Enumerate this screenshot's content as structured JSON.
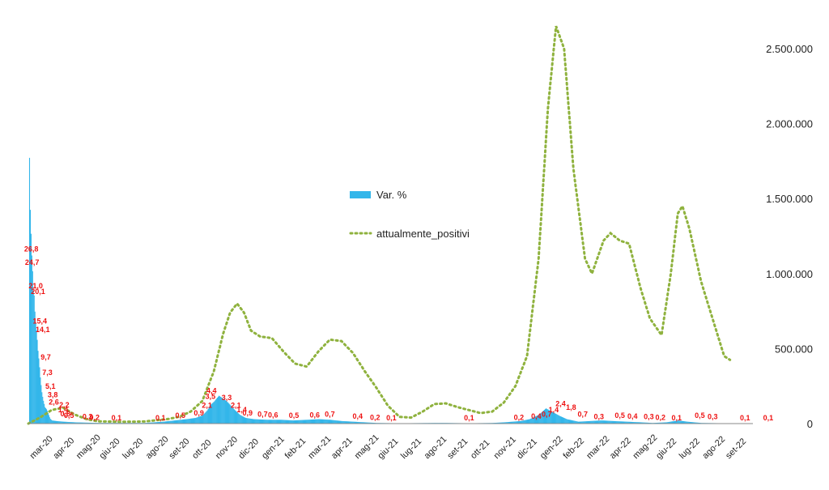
{
  "chart_data": {
    "type": "bar+line",
    "title": "",
    "colors": {
      "bars": "#33b6ea",
      "line": "#8fb23e",
      "labels": "#ee1111",
      "axis": "#888888"
    },
    "x_ticks": [
      "mar-20",
      "apr-20",
      "mag-20",
      "giu-20",
      "lug-20",
      "ago-20",
      "set-20",
      "ott-20",
      "nov-20",
      "dic-20",
      "gen-21",
      "feb-21",
      "mar-21",
      "apr-21",
      "mag-21",
      "giu-21",
      "lug-21",
      "ago-21",
      "set-21",
      "ott-21",
      "nov-21",
      "dic-21",
      "gen-22",
      "feb-22",
      "mar-22",
      "apr-22",
      "mag-22",
      "giu-22",
      "lug-22",
      "ago-22",
      "set-22"
    ],
    "y_right": {
      "min": 0,
      "max": 2700000,
      "ticks": [
        0,
        500000,
        1000000,
        1500000,
        2000000,
        2500000
      ],
      "tick_labels": [
        "0",
        "500.000",
        "1.000.000",
        "1.500.000",
        "2.000.000",
        "2.500.000"
      ]
    },
    "var_scale_max": 64,
    "series": [
      {
        "name": "Var. %",
        "kind": "bar",
        "points": [
          [
            0,
            0
          ],
          [
            0.02,
            46
          ],
          [
            0.04,
            40
          ],
          [
            0.07,
            33
          ],
          [
            0.1,
            30
          ],
          [
            0.13,
            26.8
          ],
          [
            0.16,
            24.7
          ],
          [
            0.2,
            21
          ],
          [
            0.24,
            20.1
          ],
          [
            0.28,
            16.5
          ],
          [
            0.32,
            15.4
          ],
          [
            0.35,
            14.1
          ],
          [
            0.4,
            11.5
          ],
          [
            0.45,
            9.7
          ],
          [
            0.5,
            7.3
          ],
          [
            0.56,
            5.1
          ],
          [
            0.62,
            3.8
          ],
          [
            0.7,
            2.6
          ],
          [
            0.78,
            2.2
          ],
          [
            0.86,
            1.4
          ],
          [
            0.92,
            0.8
          ],
          [
            1.0,
            0.5
          ],
          [
            1.2,
            0.4
          ],
          [
            1.5,
            0.3
          ],
          [
            2.0,
            0.2
          ],
          [
            3.0,
            0.1
          ],
          [
            5.0,
            0.1
          ],
          [
            5.8,
            0.3
          ],
          [
            6.3,
            0.5
          ],
          [
            6.8,
            0.7
          ],
          [
            7.2,
            0.9
          ],
          [
            7.5,
            1.3
          ],
          [
            7.7,
            2.1
          ],
          [
            7.85,
            3.0
          ],
          [
            8.0,
            3.5
          ],
          [
            8.2,
            4.4
          ],
          [
            8.45,
            3.8
          ],
          [
            8.6,
            3.3
          ],
          [
            8.9,
            2.1
          ],
          [
            9.1,
            1.4
          ],
          [
            9.35,
            0.9
          ],
          [
            9.7,
            0.7
          ],
          [
            10.3,
            0.6
          ],
          [
            10.9,
            0.6
          ],
          [
            11.4,
            0.5
          ],
          [
            12.0,
            0.6
          ],
          [
            12.5,
            0.7
          ],
          [
            13.0,
            0.6
          ],
          [
            13.5,
            0.4
          ],
          [
            14.0,
            0.3
          ],
          [
            14.5,
            0.2
          ],
          [
            15.0,
            0.1
          ],
          [
            16.0,
            0.05
          ],
          [
            17.5,
            0.1
          ],
          [
            18.0,
            0.1
          ],
          [
            19.0,
            0.05
          ],
          [
            20.0,
            0.1
          ],
          [
            20.5,
            0.2
          ],
          [
            21.2,
            0.4
          ],
          [
            21.6,
            0.7
          ],
          [
            22.0,
            1.4
          ],
          [
            22.3,
            2.4
          ],
          [
            22.6,
            1.8
          ],
          [
            22.9,
            1.2
          ],
          [
            23.2,
            0.7
          ],
          [
            23.7,
            0.3
          ],
          [
            24.2,
            0.4
          ],
          [
            24.7,
            0.5
          ],
          [
            25.2,
            0.4
          ],
          [
            25.8,
            0.3
          ],
          [
            26.4,
            0.2
          ],
          [
            26.9,
            0.1
          ],
          [
            27.5,
            0.2
          ],
          [
            28.0,
            0.5
          ],
          [
            28.4,
            0.3
          ],
          [
            29.0,
            0.1
          ],
          [
            30.0,
            0.05
          ],
          [
            31.0,
            0.05
          ]
        ]
      },
      {
        "name": "attualmente_positivi",
        "kind": "line",
        "points": [
          [
            0,
            0
          ],
          [
            0.5,
            40000
          ],
          [
            1.0,
            90000
          ],
          [
            1.5,
            106000
          ],
          [
            2.0,
            60000
          ],
          [
            2.5,
            30000
          ],
          [
            3.0,
            15000
          ],
          [
            4.0,
            12000
          ],
          [
            5.0,
            14000
          ],
          [
            6.0,
            30000
          ],
          [
            6.5,
            45000
          ],
          [
            7.0,
            80000
          ],
          [
            7.5,
            150000
          ],
          [
            8.0,
            350000
          ],
          [
            8.4,
            600000
          ],
          [
            8.7,
            740000
          ],
          [
            9.0,
            800000
          ],
          [
            9.3,
            740000
          ],
          [
            9.6,
            620000
          ],
          [
            10.0,
            580000
          ],
          [
            10.5,
            570000
          ],
          [
            11.0,
            480000
          ],
          [
            11.5,
            400000
          ],
          [
            12.0,
            380000
          ],
          [
            12.5,
            480000
          ],
          [
            13.0,
            560000
          ],
          [
            13.5,
            550000
          ],
          [
            14.0,
            470000
          ],
          [
            14.5,
            350000
          ],
          [
            15.0,
            240000
          ],
          [
            15.5,
            120000
          ],
          [
            16.0,
            45000
          ],
          [
            16.5,
            40000
          ],
          [
            17.0,
            80000
          ],
          [
            17.5,
            130000
          ],
          [
            18.0,
            135000
          ],
          [
            18.5,
            110000
          ],
          [
            19.0,
            90000
          ],
          [
            19.5,
            70000
          ],
          [
            20.0,
            80000
          ],
          [
            20.5,
            140000
          ],
          [
            21.0,
            250000
          ],
          [
            21.5,
            450000
          ],
          [
            22.0,
            1100000
          ],
          [
            22.4,
            2100000
          ],
          [
            22.75,
            2650000
          ],
          [
            23.1,
            2500000
          ],
          [
            23.5,
            1700000
          ],
          [
            24.0,
            1100000
          ],
          [
            24.3,
            1000000
          ],
          [
            24.8,
            1220000
          ],
          [
            25.1,
            1270000
          ],
          [
            25.5,
            1220000
          ],
          [
            25.9,
            1200000
          ],
          [
            26.4,
            900000
          ],
          [
            26.8,
            700000
          ],
          [
            27.3,
            590000
          ],
          [
            27.7,
            1000000
          ],
          [
            28.0,
            1400000
          ],
          [
            28.2,
            1450000
          ],
          [
            28.5,
            1300000
          ],
          [
            29.0,
            950000
          ],
          [
            29.5,
            700000
          ],
          [
            30.0,
            450000
          ],
          [
            30.3,
            420000
          ]
        ]
      }
    ],
    "data_labels": [
      {
        "x": 0.13,
        "y": 26.8,
        "text": "26,8"
      },
      {
        "x": 0.16,
        "y": 24.7,
        "text": "24,7"
      },
      {
        "x": 0.32,
        "y": 21.0,
        "text": "21,0"
      },
      {
        "x": 0.42,
        "y": 20.1,
        "text": "20,1"
      },
      {
        "x": 0.5,
        "y": 15.4,
        "text": "15,4"
      },
      {
        "x": 0.62,
        "y": 14.1,
        "text": "14,1"
      },
      {
        "x": 0.75,
        "y": 9.7,
        "text": "9,7"
      },
      {
        "x": 0.82,
        "y": 7.3,
        "text": "7,3"
      },
      {
        "x": 0.95,
        "y": 5.1,
        "text": "5,1"
      },
      {
        "x": 1.05,
        "y": 3.8,
        "text": "3,8"
      },
      {
        "x": 1.1,
        "y": 2.6,
        "text": "2,6"
      },
      {
        "x": 1.55,
        "y": 2.2,
        "text": "2,2"
      },
      {
        "x": 1.5,
        "y": 1.4,
        "text": "1,4"
      },
      {
        "x": 1.6,
        "y": 0.8,
        "text": "0,8"
      },
      {
        "x": 1.75,
        "y": 0.5,
        "text": "0,5"
      },
      {
        "x": 2.55,
        "y": 0.3,
        "text": "0,3"
      },
      {
        "x": 2.85,
        "y": 0.2,
        "text": "0,2"
      },
      {
        "x": 3.8,
        "y": 0.1,
        "text": "0,1"
      },
      {
        "x": 5.7,
        "y": 0.1,
        "text": "0,1"
      },
      {
        "x": 6.55,
        "y": 0.5,
        "text": "0,5"
      },
      {
        "x": 7.35,
        "y": 0.9,
        "text": "0,9"
      },
      {
        "x": 7.7,
        "y": 2.1,
        "text": "2,1"
      },
      {
        "x": 7.85,
        "y": 3.5,
        "text": "3,5"
      },
      {
        "x": 7.9,
        "y": 4.4,
        "text": "4,4"
      },
      {
        "x": 8.55,
        "y": 3.3,
        "text": "3,3"
      },
      {
        "x": 8.95,
        "y": 2.1,
        "text": "2,1"
      },
      {
        "x": 9.2,
        "y": 1.4,
        "text": "1,4"
      },
      {
        "x": 9.45,
        "y": 0.9,
        "text": "0,9"
      },
      {
        "x": 10.1,
        "y": 0.7,
        "text": "0,7"
      },
      {
        "x": 10.55,
        "y": 0.6,
        "text": "0,6"
      },
      {
        "x": 11.45,
        "y": 0.5,
        "text": "0,5"
      },
      {
        "x": 12.35,
        "y": 0.6,
        "text": "0,6"
      },
      {
        "x": 13.0,
        "y": 0.7,
        "text": "0,7"
      },
      {
        "x": 14.2,
        "y": 0.4,
        "text": "0,4"
      },
      {
        "x": 14.95,
        "y": 0.2,
        "text": "0,2"
      },
      {
        "x": 15.65,
        "y": 0.1,
        "text": "0,1"
      },
      {
        "x": 19.0,
        "y": 0.1,
        "text": "0,1"
      },
      {
        "x": 21.15,
        "y": 0.2,
        "text": "0,2"
      },
      {
        "x": 21.9,
        "y": 0.4,
        "text": "0,4"
      },
      {
        "x": 22.35,
        "y": 0.7,
        "text": "0,7"
      },
      {
        "x": 22.65,
        "y": 1.4,
        "text": "1,4"
      },
      {
        "x": 22.95,
        "y": 2.4,
        "text": "2,4"
      },
      {
        "x": 23.4,
        "y": 1.8,
        "text": "1,8"
      },
      {
        "x": 23.9,
        "y": 0.7,
        "text": "0,7"
      },
      {
        "x": 24.6,
        "y": 0.3,
        "text": "0,3"
      },
      {
        "x": 25.5,
        "y": 0.5,
        "text": "0,5"
      },
      {
        "x": 26.05,
        "y": 0.4,
        "text": "0,4"
      },
      {
        "x": 26.75,
        "y": 0.3,
        "text": "0,3"
      },
      {
        "x": 27.25,
        "y": 0.2,
        "text": "0,2"
      },
      {
        "x": 27.95,
        "y": 0.1,
        "text": "0,1"
      },
      {
        "x": 28.95,
        "y": 0.5,
        "text": "0,5"
      },
      {
        "x": 29.5,
        "y": 0.3,
        "text": "0,3"
      },
      {
        "x": 30.9,
        "y": 0.1,
        "text": "0,1"
      },
      {
        "x": 31.9,
        "y": 0.1,
        "text": "0,1"
      }
    ],
    "legend": [
      {
        "name": "Var. %",
        "kind": "bar"
      },
      {
        "name": "attualmente_positivi",
        "kind": "line"
      }
    ]
  }
}
